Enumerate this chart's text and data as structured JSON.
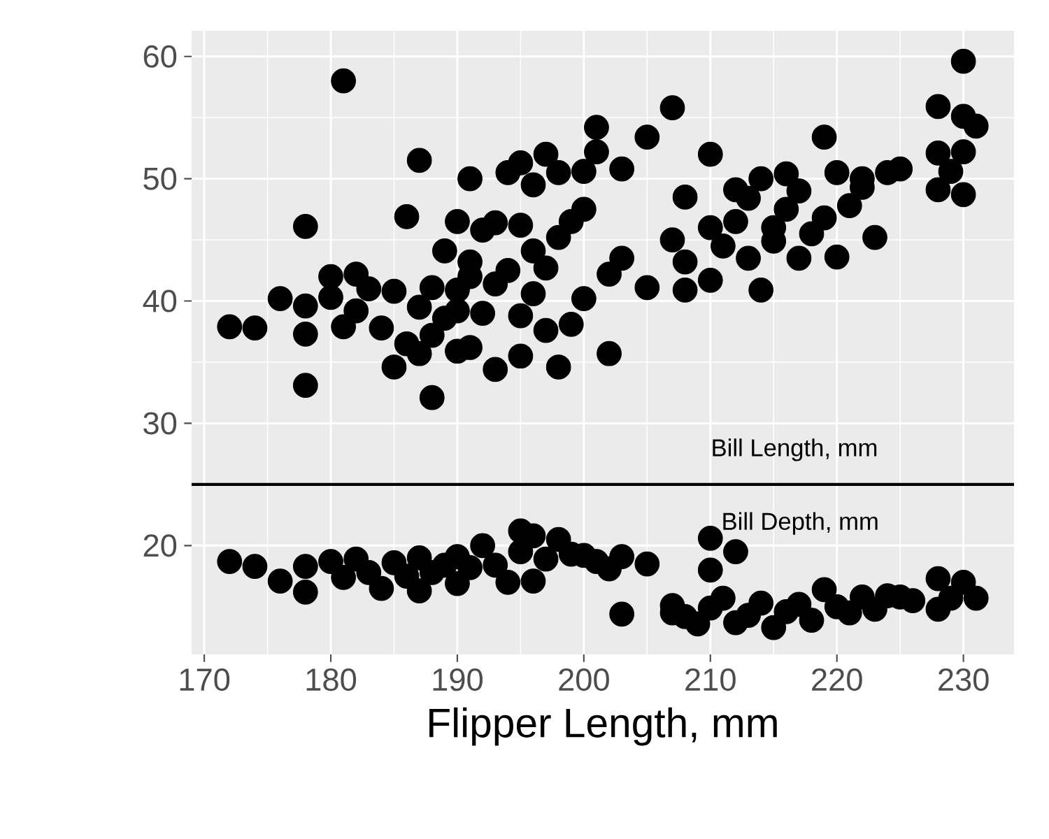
{
  "chart_data": {
    "type": "scatter",
    "xlabel": "Flipper Length, mm",
    "xlim": [
      169,
      234
    ],
    "ylim": [
      11.1,
      62.1
    ],
    "xticks": [
      170,
      180,
      190,
      200,
      210,
      220,
      230
    ],
    "yticks": [
      20,
      30,
      40,
      50,
      60
    ],
    "grid": true,
    "marker": "circle",
    "annotations": [
      "Bill Length, mm",
      "Bill Depth, mm"
    ],
    "ref_lines": [
      {
        "axis": "y",
        "value": 25,
        "color": "#000000"
      }
    ],
    "series": [
      {
        "color": "#000000",
        "x": [
          172,
          174,
          176,
          178,
          178,
          178,
          178,
          180,
          180,
          181,
          181,
          182,
          182,
          183,
          184,
          185,
          185,
          186,
          186,
          187,
          187,
          187,
          188,
          188,
          188,
          189,
          189,
          190,
          190,
          190,
          190,
          191,
          191,
          191,
          191,
          192,
          192,
          193,
          193,
          193,
          194,
          194,
          195,
          195,
          195,
          195,
          196,
          196,
          196,
          197,
          197,
          197,
          198,
          198,
          198,
          199,
          199,
          200,
          200,
          200,
          201,
          201,
          202,
          202,
          203,
          203,
          205,
          205,
          207,
          207,
          208,
          208,
          208,
          210,
          210,
          210,
          211,
          212,
          212,
          213,
          213,
          214,
          214,
          215,
          215,
          216,
          216,
          217,
          217,
          218,
          219,
          219,
          220,
          220,
          221,
          222,
          222,
          223,
          224,
          225,
          228,
          228,
          228,
          229,
          230,
          230,
          230,
          230,
          231
        ],
        "values": [
          37.9,
          37.8,
          40.2,
          46.1,
          39.6,
          37.3,
          33.1,
          42,
          40.3,
          58,
          37.9,
          42.2,
          39.2,
          41,
          37.8,
          34.6,
          40.8,
          46.9,
          36.5,
          51.5,
          39.5,
          35.7,
          32.1,
          41.1,
          37.2,
          44.1,
          38.6,
          46.5,
          40.9,
          35.9,
          39.2,
          50,
          43.2,
          36.2,
          42,
          45.8,
          39,
          46.4,
          34.4,
          41.4,
          50.5,
          42.5,
          51.3,
          46.2,
          38.8,
          35.5,
          49.5,
          44.1,
          40.6,
          52,
          42.7,
          37.6,
          50.5,
          45.2,
          34.6,
          46.5,
          38.1,
          50.6,
          47.5,
          40.2,
          52.2,
          54.2,
          42.2,
          35.7,
          43.5,
          50.8,
          53.4,
          41.1,
          55.8,
          45,
          48.5,
          40.9,
          43.2,
          52,
          46,
          41.7,
          44.5,
          49.1,
          46.5,
          48.4,
          43.5,
          50,
          40.9,
          46,
          44.9,
          50.4,
          47.5,
          49,
          43.5,
          45.5,
          53.4,
          46.8,
          50.5,
          43.6,
          47.8,
          50,
          49.3,
          45.2,
          50.5,
          50.8,
          55.9,
          52.1,
          49.1,
          50.6,
          59.6,
          55.1,
          52.2,
          48.7,
          54.3
        ]
      },
      {
        "color": "#000000",
        "x": [
          172,
          174,
          176,
          178,
          178,
          180,
          181,
          182,
          183,
          184,
          185,
          186,
          187,
          187,
          188,
          189,
          190,
          190,
          191,
          192,
          193,
          194,
          195,
          195,
          196,
          196,
          197,
          198,
          199,
          200,
          201,
          202,
          203,
          203,
          205,
          207,
          207,
          208,
          209,
          210,
          210,
          210,
          211,
          212,
          212,
          213,
          214,
          215,
          216,
          217,
          218,
          219,
          220,
          221,
          222,
          223,
          224,
          225,
          226,
          228,
          228,
          229,
          230,
          231
        ],
        "values": [
          18.7,
          18.3,
          17.1,
          18.3,
          16.2,
          18.7,
          17.4,
          18.9,
          17.8,
          16.5,
          18.6,
          17.5,
          19,
          16.3,
          17.8,
          18.4,
          19.1,
          16.9,
          18.2,
          20,
          18.4,
          17,
          21.2,
          19.5,
          20.8,
          17.1,
          18.9,
          20.5,
          19.3,
          19.2,
          18.7,
          18.1,
          19.1,
          14.4,
          18.5,
          14.5,
          15.1,
          14.2,
          13.6,
          20.6,
          14.9,
          18,
          15.7,
          19.5,
          13.7,
          14.3,
          15.3,
          13.3,
          14.6,
          15.2,
          13.9,
          16.4,
          15,
          14.5,
          15.8,
          14.8,
          15.9,
          15.8,
          15.5,
          17.3,
          14.8,
          15.7,
          17,
          15.7
        ]
      }
    ]
  }
}
